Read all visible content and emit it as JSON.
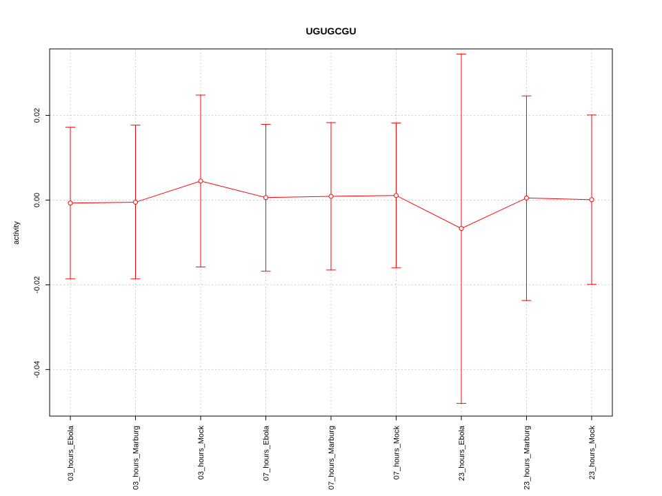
{
  "chart_data": {
    "type": "line",
    "title": "UGUGCGU",
    "xlabel": "",
    "ylabel": "activity",
    "categories": [
      "03_hours_Ebola",
      "03_hours_Marburg",
      "03_hours_Mock",
      "07_hours_Ebola",
      "07_hours_Marburg",
      "07_hours_Mock",
      "23_hours_Ebola",
      "23_hours_Marburg",
      "23_hours_Mock"
    ],
    "series": [
      {
        "values": [
          -0.0007,
          -0.0005,
          0.0045,
          0.0006,
          0.0009,
          0.0011,
          -0.0067,
          0.0005,
          0.0001
        ],
        "upper": [
          0.0172,
          0.0177,
          0.0248,
          0.0179,
          0.0183,
          0.0182,
          0.0345,
          0.0246,
          0.0201
        ],
        "lower": [
          -0.0186,
          -0.0186,
          -0.0158,
          -0.0168,
          -0.0165,
          -0.016,
          -0.048,
          -0.0237,
          -0.0199
        ]
      }
    ],
    "ylim": [
      -0.051,
      0.0357
    ],
    "yticks": [
      "0.02",
      "0.00",
      "-0.02",
      "-0.04"
    ],
    "ytick_values": [
      0.02,
      0.0,
      -0.02,
      -0.04
    ],
    "grid": true,
    "color": "#ff0000",
    "grid_color": "#cccccc"
  }
}
